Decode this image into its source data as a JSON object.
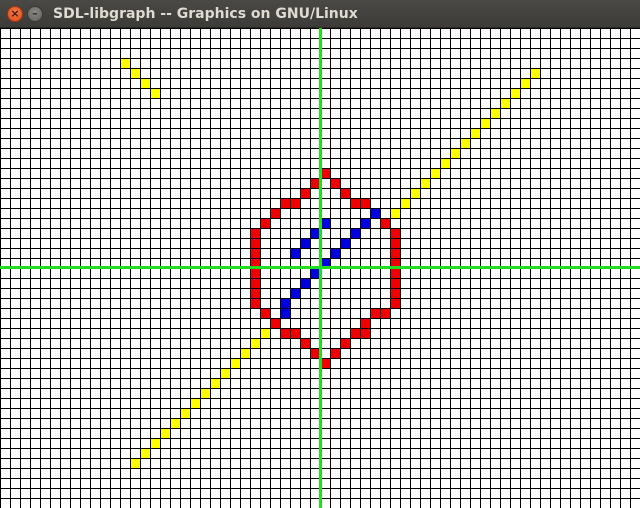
{
  "window": {
    "title": "SDL-libgraph -- Graphics on GNU/Linux",
    "close_glyph": "×",
    "minimize_glyph": "–"
  },
  "graph": {
    "grid_rows": 48,
    "grid_cols": 64,
    "origin_col": 32,
    "origin_row": 24,
    "colors": {
      "background": "#ffffff",
      "grid": "#000000",
      "axes": "#22dd22",
      "yellow": "#ffff00",
      "red": "#ee0000",
      "blue": "#0000dd"
    },
    "yellow_cells": [
      [
        -20,
        21
      ],
      [
        -19,
        20
      ],
      [
        -18,
        19
      ],
      [
        -17,
        18
      ],
      [
        -19,
        -19
      ],
      [
        -18,
        -18
      ],
      [
        -17,
        -17
      ],
      [
        -16,
        -16
      ],
      [
        -15,
        -15
      ],
      [
        -14,
        -14
      ],
      [
        -13,
        -13
      ],
      [
        -12,
        -12
      ],
      [
        -11,
        -11
      ],
      [
        -10,
        -10
      ],
      [
        -9,
        -9
      ],
      [
        -8,
        -8
      ],
      [
        -7,
        -7
      ],
      [
        -6,
        -6
      ],
      [
        7,
        6
      ],
      [
        8,
        7
      ],
      [
        9,
        8
      ],
      [
        10,
        9
      ],
      [
        11,
        10
      ],
      [
        12,
        11
      ],
      [
        13,
        12
      ],
      [
        14,
        13
      ],
      [
        15,
        14
      ],
      [
        16,
        15
      ],
      [
        17,
        16
      ],
      [
        18,
        17
      ],
      [
        19,
        18
      ],
      [
        20,
        19
      ],
      [
        21,
        20
      ]
    ],
    "red_cells": [
      [
        0,
        10
      ],
      [
        -1,
        9
      ],
      [
        1,
        9
      ],
      [
        -2,
        8
      ],
      [
        2,
        8
      ],
      [
        -3,
        7
      ],
      [
        -4,
        7
      ],
      [
        3,
        7
      ],
      [
        4,
        7
      ],
      [
        -5,
        6
      ],
      [
        5,
        6
      ],
      [
        -6,
        5
      ],
      [
        6,
        5
      ],
      [
        -7,
        4
      ],
      [
        -7,
        3
      ],
      [
        -7,
        2
      ],
      [
        -7,
        1
      ],
      [
        -7,
        0
      ],
      [
        -7,
        -1
      ],
      [
        -7,
        -2
      ],
      [
        -7,
        -3
      ],
      [
        7,
        4
      ],
      [
        7,
        3
      ],
      [
        7,
        2
      ],
      [
        7,
        1
      ],
      [
        7,
        0
      ],
      [
        7,
        -1
      ],
      [
        7,
        -2
      ],
      [
        7,
        -3
      ],
      [
        -6,
        -4
      ],
      [
        -5,
        -5
      ],
      [
        5,
        -4
      ],
      [
        6,
        -4
      ],
      [
        4,
        -5
      ],
      [
        -3,
        -6
      ],
      [
        -4,
        -6
      ],
      [
        3,
        -6
      ],
      [
        4,
        -6
      ],
      [
        -2,
        -7
      ],
      [
        2,
        -7
      ],
      [
        -1,
        -8
      ],
      [
        1,
        -8
      ],
      [
        0,
        -9
      ]
    ],
    "blue_cells": [
      [
        0,
        5
      ],
      [
        -1,
        4
      ],
      [
        -2,
        3
      ],
      [
        -3,
        2
      ],
      [
        -1,
        0
      ],
      [
        -2,
        -1
      ],
      [
        -3,
        -2
      ],
      [
        -4,
        -3
      ],
      [
        5,
        6
      ],
      [
        4,
        5
      ],
      [
        3,
        4
      ],
      [
        2,
        3
      ],
      [
        1,
        2
      ],
      [
        0,
        1
      ],
      [
        -4,
        -4
      ]
    ]
  }
}
